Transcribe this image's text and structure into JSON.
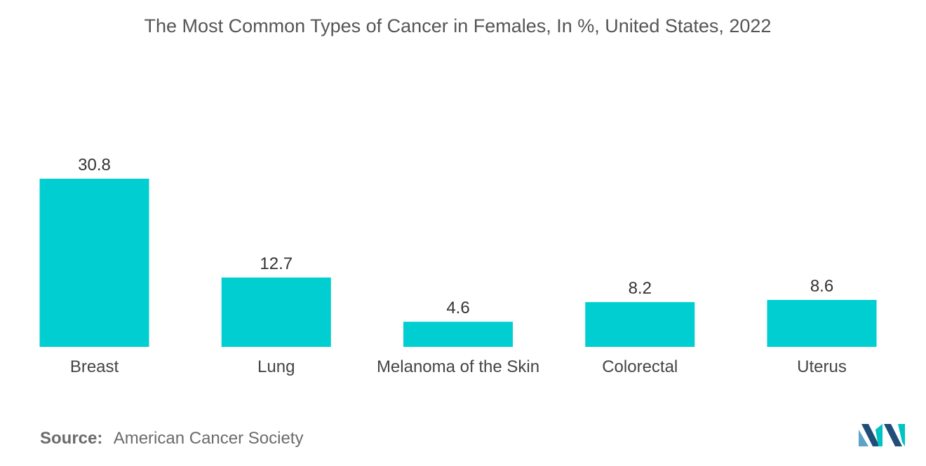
{
  "chart_data": {
    "type": "bar",
    "title": "The Most Common Types of Cancer in Females, In %, United States, 2022",
    "categories": [
      "Breast",
      "Lung",
      "Melanoma of the Skin",
      "Colorectal",
      "Uterus"
    ],
    "values": [
      30.8,
      12.7,
      4.6,
      8.2,
      8.6
    ],
    "value_labels": [
      "30.8",
      "12.7",
      "4.6",
      "8.2",
      "8.6"
    ],
    "xlabel": "",
    "ylabel": "",
    "ylim": [
      0,
      30.8
    ],
    "grid": false,
    "legend": "none",
    "bar_color": "#00CED1"
  },
  "source": {
    "label": "Source:",
    "text": "American Cancer Society"
  },
  "logo": {
    "icon": "mordor-intelligence-logo",
    "colors": [
      "#5BA4C8",
      "#1E4E79",
      "#00C4C4"
    ]
  }
}
